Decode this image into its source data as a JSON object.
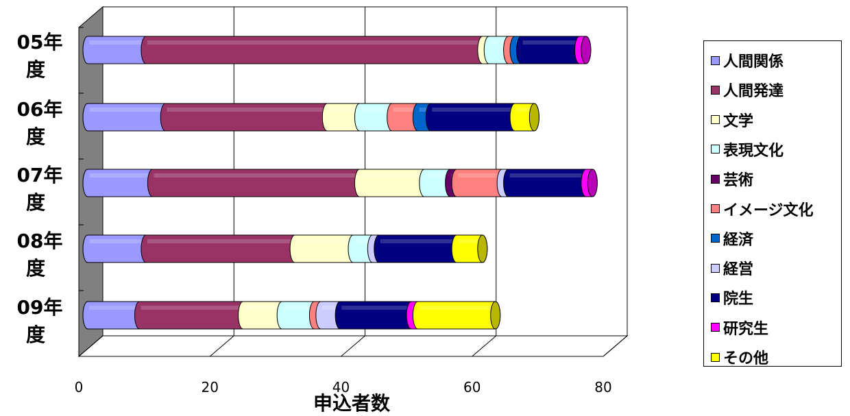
{
  "chart_data": {
    "type": "bar",
    "orientation": "horizontal",
    "stacked": true,
    "style": "3d-cylinder",
    "categories": [
      "05年度",
      "06年度",
      "07年度",
      "08年度",
      "09年度"
    ],
    "xlabel": "申込者数",
    "ylabel": "",
    "xlim": [
      0,
      80
    ],
    "xticks": [
      "0",
      "20",
      "40",
      "60",
      "80"
    ],
    "grid": true,
    "legend_position": "right",
    "series": [
      {
        "name": "人間関係",
        "color": "#9999FF",
        "values": [
          9,
          12,
          10,
          9,
          8
        ]
      },
      {
        "name": "人間発達",
        "color": "#993366",
        "values": [
          52,
          25,
          32,
          23,
          16
        ]
      },
      {
        "name": "文学",
        "color": "#FFFFCC",
        "values": [
          1,
          5,
          10,
          9,
          6
        ]
      },
      {
        "name": "表現文化",
        "color": "#CCFFFF",
        "values": [
          3,
          5,
          4,
          3,
          5
        ]
      },
      {
        "name": "芸術",
        "color": "#660066",
        "values": [
          0,
          0,
          1,
          0,
          0
        ]
      },
      {
        "name": "イメージ文化",
        "color": "#FF8080",
        "values": [
          1,
          4,
          7,
          0,
          1
        ]
      },
      {
        "name": "経済",
        "color": "#0066CC",
        "values": [
          1,
          2,
          0,
          0,
          0
        ]
      },
      {
        "name": "経営",
        "color": "#CCCCFF",
        "values": [
          0,
          0,
          1,
          1,
          3
        ]
      },
      {
        "name": "院生",
        "color": "#000080",
        "values": [
          9,
          13,
          12,
          12,
          11
        ]
      },
      {
        "name": "研究生",
        "color": "#FF00FF",
        "values": [
          1,
          0,
          1,
          0,
          1
        ]
      },
      {
        "name": "その他",
        "color": "#FFFF00",
        "values": [
          0,
          3,
          0,
          4,
          12
        ]
      }
    ]
  }
}
